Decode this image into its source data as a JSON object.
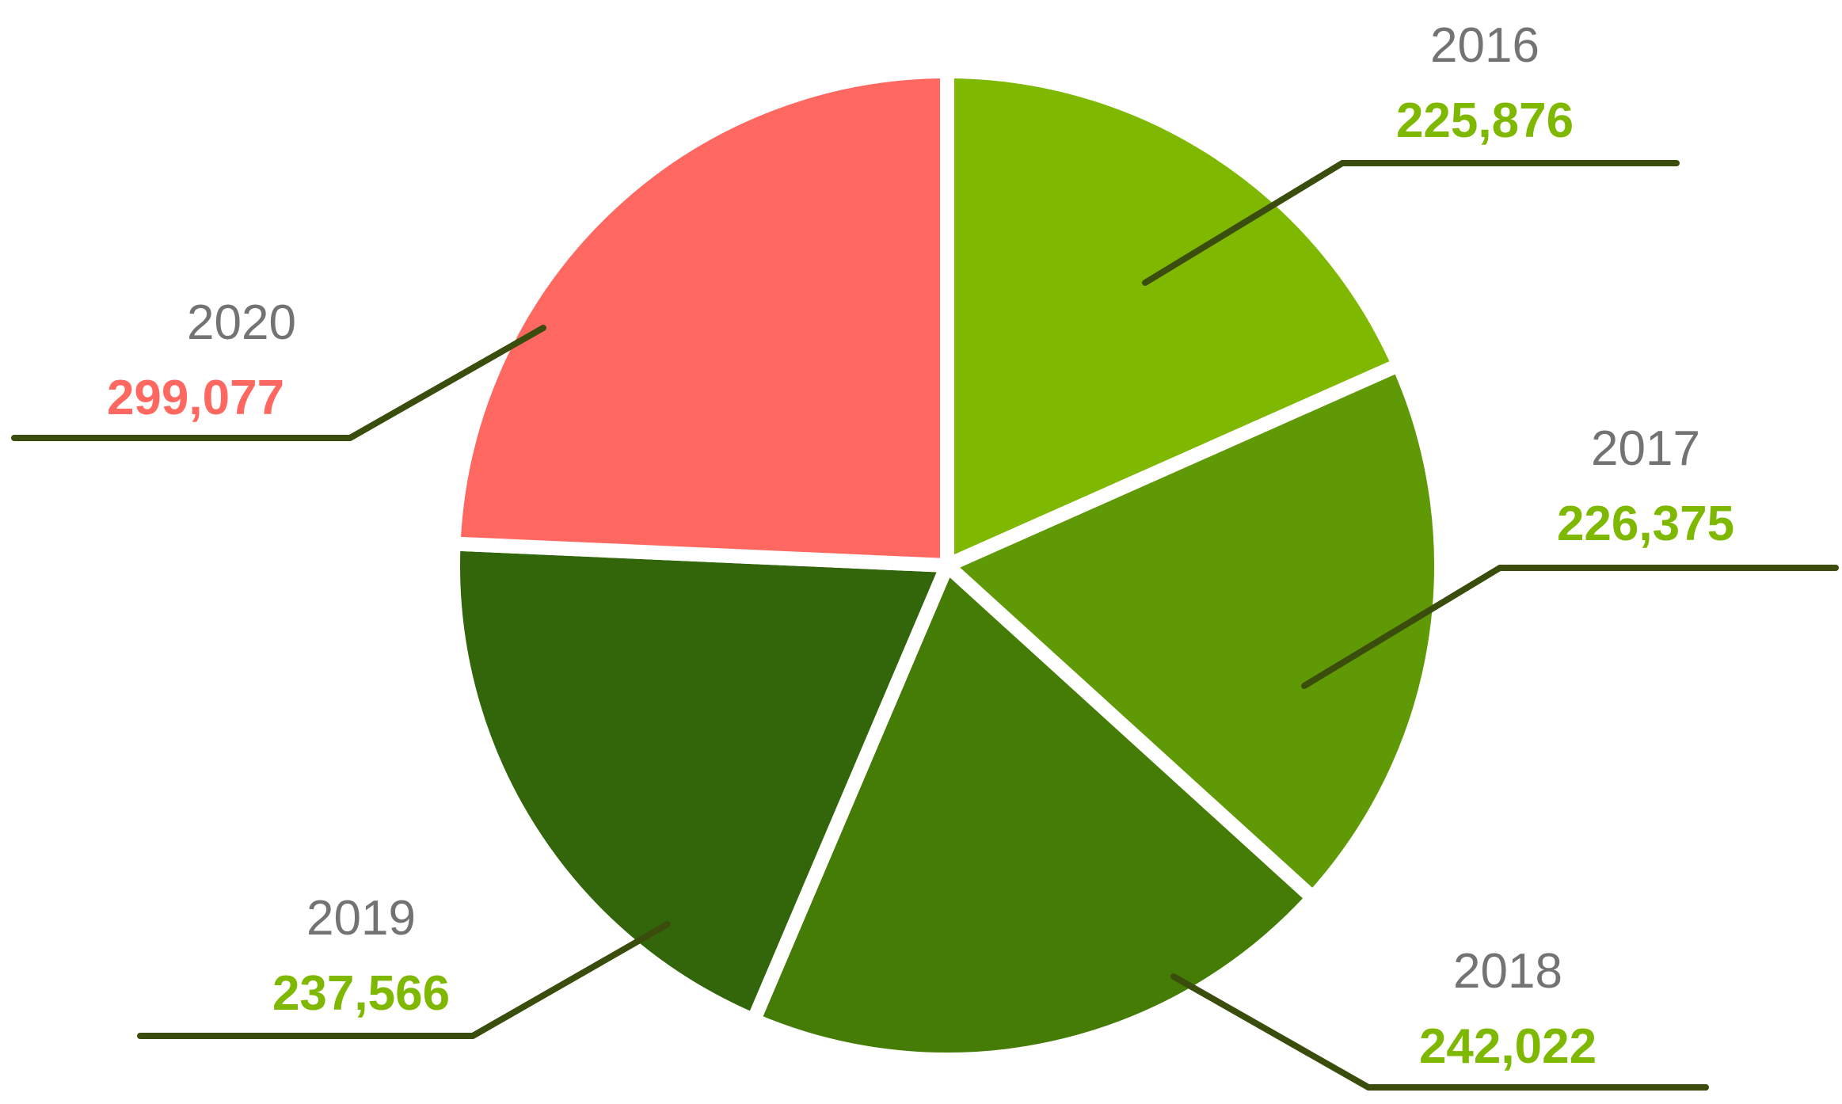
{
  "chart_data": {
    "type": "pie",
    "title": "",
    "slices": [
      {
        "label": "2016",
        "value": 225876,
        "value_text": "225,876",
        "color": "#7fb800",
        "label_color": "#7fb800"
      },
      {
        "label": "2017",
        "value": 226375,
        "value_text": "226,375",
        "color": "#5f9905",
        "label_color": "#7fb800"
      },
      {
        "label": "2018",
        "value": 242022,
        "value_text": "242,022",
        "color": "#457c06",
        "label_color": "#7fb800"
      },
      {
        "label": "2019",
        "value": 237566,
        "value_text": "237,566",
        "color": "#33660a",
        "label_color": "#7fb800"
      },
      {
        "label": "2020",
        "value": 299077,
        "value_text": "299,077",
        "color": "#ff6860",
        "label_color": "#ff6860"
      }
    ],
    "colors": {
      "leader_line": "#3b4d0c",
      "year_text": "#737373",
      "separator": "#ffffff"
    },
    "start_angle": "12 o'clock",
    "direction": "clockwise"
  }
}
